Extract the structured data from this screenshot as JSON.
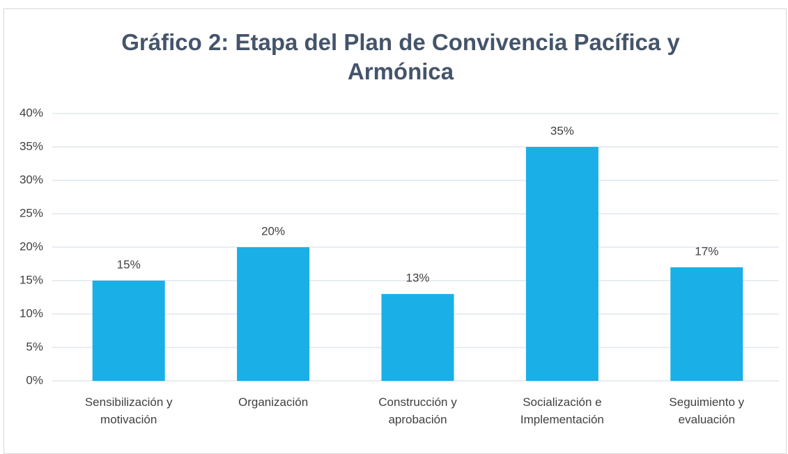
{
  "chart_data": {
    "type": "bar",
    "title": "Gráfico 2: Etapa del Plan de Convivencia Pacífica y Armónica",
    "categories": [
      "Sensibilización y motivación",
      "Organización",
      "Construcción y aprobación",
      "Socialización e Implementación",
      "Seguimiento y evaluación"
    ],
    "values": [
      15,
      20,
      13,
      35,
      17
    ],
    "value_labels": [
      "15%",
      "20%",
      "13%",
      "35%",
      "17%"
    ],
    "color": "#1aafe6",
    "ylim": [
      0,
      40
    ],
    "yticks": [
      {
        "value": 0,
        "label": "0%"
      },
      {
        "value": 5,
        "label": "5%"
      },
      {
        "value": 10,
        "label": "10%"
      },
      {
        "value": 15,
        "label": "15%"
      },
      {
        "value": 20,
        "label": "20%"
      },
      {
        "value": 25,
        "label": "25%"
      },
      {
        "value": 30,
        "label": "30%"
      },
      {
        "value": 35,
        "label": "35%"
      },
      {
        "value": 40,
        "label": "40%"
      }
    ],
    "grid": true
  }
}
